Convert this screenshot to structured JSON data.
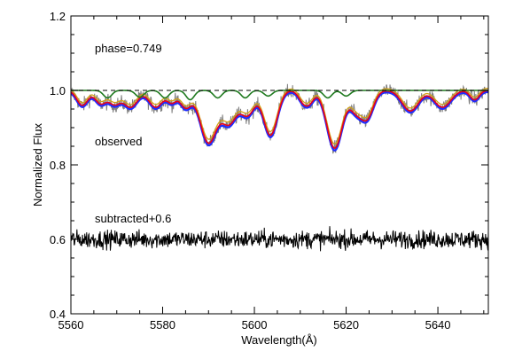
{
  "chart_data": {
    "type": "line",
    "xlabel": "Wavelength(Å)",
    "ylabel": "Normalized Flux",
    "xlim": [
      5560,
      5651
    ],
    "ylim": [
      0.4,
      1.2
    ],
    "x_ticks": [
      5560,
      5580,
      5600,
      5620,
      5640
    ],
    "x_tick_labels": [
      "5560",
      "5580",
      "5600",
      "5620",
      "5640"
    ],
    "y_ticks": [
      0.4,
      0.6,
      0.8,
      1.0,
      1.2
    ],
    "y_tick_labels": [
      "0.4",
      "0.6",
      "0.8",
      "1.0",
      "1.2"
    ],
    "annotations": {
      "phase": "phase=0.749",
      "observed": "observed",
      "subtracted": "subtracted+0.6"
    },
    "grid": false,
    "legend": "none",
    "continuum_level": 1.0,
    "absorption_lines": [
      {
        "center": 5562.5,
        "depth": 0.04,
        "width": 1.2
      },
      {
        "center": 5566.5,
        "depth": 0.035,
        "width": 1.2
      },
      {
        "center": 5569.5,
        "depth": 0.035,
        "width": 1.2
      },
      {
        "center": 5573,
        "depth": 0.045,
        "width": 1.5
      },
      {
        "center": 5578.5,
        "depth": 0.045,
        "width": 1.5
      },
      {
        "center": 5582,
        "depth": 0.03,
        "width": 1.0
      },
      {
        "center": 5585,
        "depth": 0.045,
        "width": 1.2
      },
      {
        "center": 5590,
        "depth": 0.14,
        "width": 1.8
      },
      {
        "center": 5594.5,
        "depth": 0.085,
        "width": 1.6
      },
      {
        "center": 5598.5,
        "depth": 0.065,
        "width": 1.5
      },
      {
        "center": 5603.5,
        "depth": 0.12,
        "width": 1.5
      },
      {
        "center": 5610.5,
        "depth": 0.025,
        "width": 1.0
      },
      {
        "center": 5612,
        "depth": 0.03,
        "width": 1.0
      },
      {
        "center": 5617.5,
        "depth": 0.155,
        "width": 1.7
      },
      {
        "center": 5622,
        "depth": 0.045,
        "width": 1.2
      },
      {
        "center": 5624.5,
        "depth": 0.075,
        "width": 1.4
      },
      {
        "center": 5634,
        "depth": 0.055,
        "width": 1.8
      },
      {
        "center": 5641,
        "depth": 0.045,
        "width": 1.8
      },
      {
        "center": 5648,
        "depth": 0.025,
        "width": 1.0
      }
    ],
    "model_diffs": {
      "blue_extra_depth": 0.012,
      "red_offset": 0.0
    },
    "secondary_lines": [
      {
        "center": 5568,
        "depth": 0.02,
        "width": 0.9
      },
      {
        "center": 5575,
        "depth": 0.018,
        "width": 0.9
      },
      {
        "center": 5580.5,
        "depth": 0.02,
        "width": 0.9
      },
      {
        "center": 5586,
        "depth": 0.025,
        "width": 0.9
      },
      {
        "center": 5592,
        "depth": 0.02,
        "width": 0.9
      },
      {
        "center": 5598,
        "depth": 0.02,
        "width": 0.9
      },
      {
        "center": 5603,
        "depth": 0.015,
        "width": 0.9
      },
      {
        "center": 5616,
        "depth": 0.02,
        "width": 0.9
      },
      {
        "center": 5620,
        "depth": 0.015,
        "width": 0.9
      }
    ],
    "subtracted_offset": 0.6,
    "subtracted_noise_amplitude": 0.012,
    "series": [
      {
        "name": "observed",
        "color": "#808080",
        "noise": 0.01
      },
      {
        "name": "model-blue",
        "color": "#1f2bff"
      },
      {
        "name": "model-red",
        "color": "#e8001a"
      },
      {
        "name": "model-orange",
        "color": "#d4a017"
      },
      {
        "name": "secondary",
        "color": "#1f7a1f"
      },
      {
        "name": "subtracted",
        "color": "#000000"
      }
    ]
  }
}
